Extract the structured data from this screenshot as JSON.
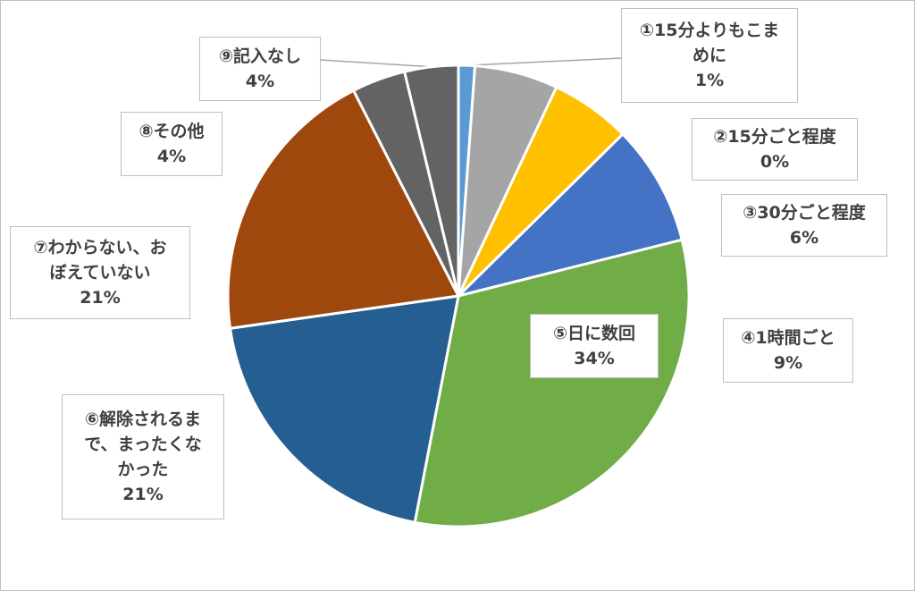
{
  "chart_data": {
    "type": "pie",
    "title": "",
    "start_angle_deg": 0,
    "direction": "clockwise",
    "slices": [
      {
        "label": "①15分よりもこま\nめに",
        "value": 1,
        "value_label": "1%",
        "color": "#5b9bd5"
      },
      {
        "label": "②15分ごと程度",
        "value": 0,
        "value_label": "0%",
        "color": "#a5a5a5"
      },
      {
        "label": "③30分ごと程度",
        "value": 6,
        "value_label": "6%",
        "color": "#ffc000"
      },
      {
        "label": "④1時間ごと",
        "value": 9,
        "value_label": "9%",
        "color": "#4472c4"
      },
      {
        "label": "⑤日に数回",
        "value": 34,
        "value_label": "34%",
        "color": "#70ad47"
      },
      {
        "label": "⑥解除されるま\nで、まったくな\nかった",
        "value": 21,
        "value_label": "21%",
        "color": "#255e91"
      },
      {
        "label": "⑦わからない、お\nぼえていない",
        "value": 21,
        "value_label": "21%",
        "color": "#9e480e"
      },
      {
        "label": "⑧その他",
        "value": 4,
        "value_label": "4%",
        "color": "#636363"
      },
      {
        "label": "⑨記入なし",
        "value": 4,
        "value_label": "4%",
        "color": "#636363"
      }
    ]
  }
}
